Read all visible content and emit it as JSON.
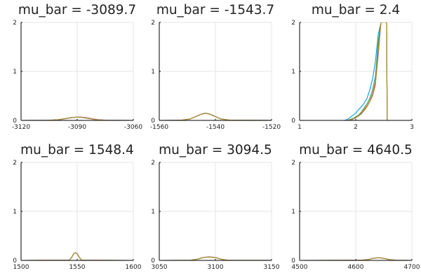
{
  "chart_data": [
    {
      "type": "line",
      "title": "mu_bar = -3089.7",
      "xlim": [
        -3120,
        -3060
      ],
      "ylim": [
        0,
        2
      ],
      "xticks": [
        -3120,
        -3090,
        -3060
      ],
      "yticks": [
        0,
        1,
        2
      ],
      "grid": true,
      "series": [
        {
          "color": "#009AFA",
          "x": [
            -3120,
            -3105,
            -3100,
            -3096,
            -3093,
            -3090,
            -3087,
            -3084,
            -3080,
            -3075,
            -3060
          ],
          "y": [
            0,
            0.003,
            0.015,
            0.04,
            0.06,
            0.068,
            0.06,
            0.04,
            0.015,
            0.003,
            0
          ]
        },
        {
          "color": "#E36F47",
          "x": [
            -3120,
            -3104,
            -3099,
            -3095,
            -3092,
            -3089,
            -3086,
            -3083,
            -3079,
            -3074,
            -3060
          ],
          "y": [
            0,
            0.003,
            0.016,
            0.042,
            0.062,
            0.07,
            0.062,
            0.042,
            0.016,
            0.003,
            0
          ]
        },
        {
          "color": "#3EA44E",
          "x": [
            -3120,
            -3105,
            -3100,
            -3096,
            -3093,
            -3090,
            -3087,
            -3084,
            -3080,
            -3075,
            -3060
          ],
          "y": [
            0,
            0.003,
            0.014,
            0.038,
            0.058,
            0.066,
            0.058,
            0.038,
            0.014,
            0.003,
            0
          ]
        },
        {
          "color": "#C271D2",
          "x": [
            -3120,
            -3104,
            -3099,
            -3095,
            -3092,
            -3089,
            -3086,
            -3083,
            -3079,
            -3074,
            -3060
          ],
          "y": [
            0,
            0.003,
            0.015,
            0.041,
            0.061,
            0.069,
            0.061,
            0.041,
            0.015,
            0.003,
            0
          ]
        },
        {
          "color": "#AC8D18",
          "x": [
            -3120,
            -3105,
            -3100,
            -3096,
            -3093,
            -3090,
            -3087,
            -3084,
            -3080,
            -3075,
            -3060
          ],
          "y": [
            0,
            0.003,
            0.015,
            0.04,
            0.059,
            0.067,
            0.059,
            0.04,
            0.015,
            0.003,
            0
          ]
        }
      ]
    },
    {
      "type": "line",
      "title": "mu_bar = -1543.7",
      "xlim": [
        -1560,
        -1520
      ],
      "ylim": [
        0,
        2
      ],
      "xticks": [
        -1560,
        -1540,
        -1520
      ],
      "yticks": [
        0,
        1,
        2
      ],
      "grid": true,
      "series": [
        {
          "color": "#009AFA",
          "x": [
            -1560,
            -1552,
            -1549,
            -1547,
            -1545,
            -1543.5,
            -1542,
            -1540,
            -1538,
            -1535,
            -1520
          ],
          "y": [
            0,
            0.004,
            0.03,
            0.08,
            0.13,
            0.15,
            0.13,
            0.08,
            0.03,
            0.004,
            0
          ]
        },
        {
          "color": "#E36F47",
          "x": [
            -1560,
            -1552,
            -1549,
            -1547,
            -1545,
            -1543.5,
            -1542,
            -1540,
            -1538,
            -1535,
            -1520
          ],
          "y": [
            0,
            0.004,
            0.028,
            0.076,
            0.125,
            0.145,
            0.125,
            0.076,
            0.028,
            0.004,
            0
          ]
        },
        {
          "color": "#3EA44E",
          "x": [
            -1560,
            -1552,
            -1549,
            -1547,
            -1545,
            -1543.5,
            -1542,
            -1540,
            -1538,
            -1535,
            -1520
          ],
          "y": [
            0,
            0.004,
            0.029,
            0.078,
            0.128,
            0.148,
            0.128,
            0.078,
            0.029,
            0.004,
            0
          ]
        },
        {
          "color": "#C271D2",
          "x": [
            -1560,
            -1552,
            -1549,
            -1547,
            -1545,
            -1543.5,
            -1542,
            -1540,
            -1538,
            -1535,
            -1520
          ],
          "y": [
            0,
            0.004,
            0.03,
            0.079,
            0.129,
            0.149,
            0.129,
            0.079,
            0.03,
            0.004,
            0
          ]
        },
        {
          "color": "#AC8D18",
          "x": [
            -1560,
            -1552,
            -1549,
            -1547,
            -1545,
            -1543.5,
            -1542,
            -1540,
            -1538,
            -1535,
            -1520
          ],
          "y": [
            0,
            0.004,
            0.029,
            0.077,
            0.126,
            0.146,
            0.126,
            0.077,
            0.029,
            0.004,
            0
          ]
        }
      ]
    },
    {
      "type": "line",
      "title": "mu_bar = 2.4",
      "xlim": [
        1,
        3
      ],
      "ylim": [
        0,
        2
      ],
      "xticks": [
        1,
        2,
        3
      ],
      "yticks": [
        0,
        1,
        2
      ],
      "grid": true,
      "series": [
        {
          "color": "#009AFA",
          "x": [
            1.8,
            1.85,
            1.9,
            2.0,
            2.05,
            2.1,
            2.15,
            2.2,
            2.25,
            2.3,
            2.35,
            2.4,
            2.45,
            2.5,
            2.55,
            2.56,
            3.0
          ],
          "y": [
            0,
            0.02,
            0.06,
            0.15,
            0.22,
            0.28,
            0.35,
            0.45,
            0.62,
            0.85,
            1.2,
            1.75,
            2.0,
            2.0,
            2.0,
            0,
            0
          ]
        },
        {
          "color": "#E36F47",
          "x": [
            1.85,
            1.95,
            2.05,
            2.1,
            2.2,
            2.25,
            2.3,
            2.35,
            2.4,
            2.45,
            2.5,
            2.55,
            2.56,
            3.0
          ],
          "y": [
            0,
            0.03,
            0.1,
            0.15,
            0.3,
            0.4,
            0.55,
            0.8,
            1.5,
            2.0,
            2.0,
            2.0,
            0,
            0
          ]
        },
        {
          "color": "#3EA44E",
          "x": [
            1.85,
            1.95,
            2.05,
            2.1,
            2.2,
            2.25,
            2.3,
            2.35,
            2.4,
            2.45,
            2.5,
            2.55,
            2.56,
            3.0
          ],
          "y": [
            0,
            0.04,
            0.11,
            0.17,
            0.34,
            0.45,
            0.62,
            0.9,
            1.6,
            2.0,
            2.0,
            2.0,
            0,
            0
          ]
        },
        {
          "color": "#C271D2",
          "x": [
            1.9,
            2.0,
            2.1,
            2.2,
            2.25,
            2.3,
            2.35,
            2.4,
            2.45,
            2.5,
            2.55,
            2.56,
            3.0
          ],
          "y": [
            0,
            0.05,
            0.13,
            0.28,
            0.4,
            0.55,
            0.75,
            1.3,
            2.0,
            2.0,
            2.0,
            0,
            0
          ]
        },
        {
          "color": "#AC8D18",
          "x": [
            1.85,
            1.95,
            2.05,
            2.15,
            2.2,
            2.25,
            2.3,
            2.35,
            2.4,
            2.45,
            2.5,
            2.55,
            2.56,
            3.0
          ],
          "y": [
            0,
            0.03,
            0.09,
            0.2,
            0.28,
            0.38,
            0.5,
            0.72,
            1.4,
            2.0,
            2.0,
            2.0,
            0,
            0
          ]
        }
      ]
    },
    {
      "type": "line",
      "title": "mu_bar = 1548.4",
      "xlim": [
        1500,
        1600
      ],
      "ylim": [
        0,
        2
      ],
      "xticks": [
        1500,
        1550,
        1600
      ],
      "yticks": [
        0,
        1,
        2
      ],
      "grid": true,
      "series": [
        {
          "color": "#009AFA",
          "x": [
            1500,
            1543,
            1545,
            1547,
            1548.4,
            1550,
            1552,
            1554,
            1600
          ],
          "y": [
            0,
            0.004,
            0.06,
            0.14,
            0.16,
            0.14,
            0.06,
            0.004,
            0
          ]
        },
        {
          "color": "#E36F47",
          "x": [
            1500,
            1543,
            1545,
            1547,
            1548.4,
            1550,
            1552,
            1554,
            1600
          ],
          "y": [
            0,
            0.004,
            0.055,
            0.135,
            0.155,
            0.135,
            0.055,
            0.004,
            0
          ]
        },
        {
          "color": "#3EA44E",
          "x": [
            1500,
            1543,
            1545,
            1547,
            1548.4,
            1550,
            1552,
            1554,
            1600
          ],
          "y": [
            0,
            0.004,
            0.058,
            0.138,
            0.158,
            0.138,
            0.058,
            0.004,
            0
          ]
        },
        {
          "color": "#C271D2",
          "x": [
            1500,
            1543,
            1545,
            1547,
            1548.4,
            1550,
            1552,
            1554,
            1600
          ],
          "y": [
            0,
            0.004,
            0.06,
            0.14,
            0.16,
            0.14,
            0.06,
            0.004,
            0
          ]
        },
        {
          "color": "#AC8D18",
          "x": [
            1500,
            1543,
            1545,
            1547,
            1548.4,
            1550,
            1552,
            1554,
            1600
          ],
          "y": [
            0,
            0.004,
            0.056,
            0.136,
            0.156,
            0.136,
            0.056,
            0.004,
            0
          ]
        }
      ]
    },
    {
      "type": "line",
      "title": "mu_bar = 3094.5",
      "xlim": [
        3050,
        3150
      ],
      "ylim": [
        0,
        2
      ],
      "xticks": [
        3050,
        3100,
        3150
      ],
      "yticks": [
        0,
        1,
        2
      ],
      "grid": true,
      "series": [
        {
          "color": "#009AFA",
          "x": [
            3050,
            3078,
            3084,
            3089,
            3094.5,
            3100,
            3105,
            3111,
            3150
          ],
          "y": [
            0,
            0.003,
            0.025,
            0.06,
            0.072,
            0.06,
            0.025,
            0.003,
            0
          ]
        },
        {
          "color": "#E36F47",
          "x": [
            3050,
            3078,
            3084,
            3089,
            3094.5,
            3100,
            3105,
            3111,
            3150
          ],
          "y": [
            0,
            0.003,
            0.024,
            0.058,
            0.07,
            0.058,
            0.024,
            0.003,
            0
          ]
        },
        {
          "color": "#3EA44E",
          "x": [
            3050,
            3078,
            3084,
            3089,
            3094.5,
            3100,
            3105,
            3111,
            3150
          ],
          "y": [
            0,
            0.003,
            0.023,
            0.057,
            0.068,
            0.057,
            0.023,
            0.003,
            0
          ]
        },
        {
          "color": "#C271D2",
          "x": [
            3050,
            3078,
            3084,
            3089,
            3094.5,
            3100,
            3105,
            3111,
            3150
          ],
          "y": [
            0,
            0.003,
            0.026,
            0.062,
            0.074,
            0.062,
            0.026,
            0.003,
            0
          ]
        },
        {
          "color": "#AC8D18",
          "x": [
            3050,
            3078,
            3084,
            3089,
            3094.5,
            3100,
            3105,
            3111,
            3150
          ],
          "y": [
            0,
            0.003,
            0.024,
            0.059,
            0.071,
            0.059,
            0.024,
            0.003,
            0
          ]
        }
      ]
    },
    {
      "type": "line",
      "title": "mu_bar = 4640.5",
      "xlim": [
        4500,
        4700
      ],
      "ylim": [
        0,
        2
      ],
      "xticks": [
        4500,
        4600,
        4700
      ],
      "yticks": [
        0,
        1,
        2
      ],
      "grid": true,
      "series": [
        {
          "color": "#009AFA",
          "x": [
            4500,
            4610,
            4622,
            4632,
            4640.5,
            4649,
            4659,
            4671,
            4700
          ],
          "y": [
            0,
            0.003,
            0.018,
            0.045,
            0.055,
            0.045,
            0.018,
            0.003,
            0
          ]
        },
        {
          "color": "#E36F47",
          "x": [
            4500,
            4610,
            4622,
            4632,
            4640.5,
            4649,
            4659,
            4671,
            4700
          ],
          "y": [
            0,
            0.003,
            0.017,
            0.043,
            0.053,
            0.043,
            0.017,
            0.003,
            0
          ]
        },
        {
          "color": "#3EA44E",
          "x": [
            4500,
            4610,
            4622,
            4632,
            4640.5,
            4649,
            4659,
            4671,
            4700
          ],
          "y": [
            0,
            0.003,
            0.017,
            0.044,
            0.054,
            0.044,
            0.017,
            0.003,
            0
          ]
        },
        {
          "color": "#C271D2",
          "x": [
            4500,
            4610,
            4622,
            4632,
            4640.5,
            4649,
            4659,
            4671,
            4700
          ],
          "y": [
            0,
            0.003,
            0.019,
            0.047,
            0.057,
            0.047,
            0.019,
            0.003,
            0
          ]
        },
        {
          "color": "#AC8D18",
          "x": [
            4500,
            4610,
            4622,
            4632,
            4640.5,
            4649,
            4659,
            4671,
            4700
          ],
          "y": [
            0,
            0.003,
            0.018,
            0.045,
            0.055,
            0.045,
            0.018,
            0.003,
            0
          ]
        }
      ]
    }
  ]
}
